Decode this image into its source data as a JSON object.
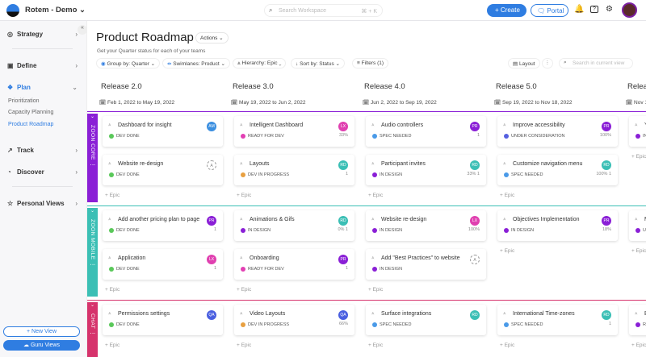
{
  "topbar": {
    "workspace": "Rotem - Demo",
    "search_placeholder": "Search Workspace",
    "search_shortcut": "⌘ + K",
    "create": "Create",
    "portal": "Portal"
  },
  "sidebar": {
    "items": [
      {
        "label": "Strategy",
        "icon": "target-icon"
      },
      {
        "label": "Define",
        "icon": "document-icon"
      },
      {
        "label": "Plan",
        "icon": "plan-icon"
      },
      {
        "label": "Track",
        "icon": "chart-icon"
      },
      {
        "label": "Discover",
        "icon": "compass-icon"
      },
      {
        "label": "Personal Views",
        "icon": "star-icon"
      }
    ],
    "plan_sub": [
      "Prioritization",
      "Capacity Planning",
      "Product Roadmap"
    ],
    "new_view": "New View",
    "guru_views": "Guru Views"
  },
  "page": {
    "title": "Product Roadmap",
    "actions": "Actions",
    "subtitle": "Get your Quarter status for each of your teams"
  },
  "toolbar": {
    "group_by": "Group by: Quarter",
    "swimlanes": "Swimlanes: Product",
    "hierarchy": "Hierarchy: Epic",
    "sort_by": "Sort by: Status",
    "filters": "Filters (1)",
    "layout": "Layout",
    "search_placeholder": "Search in current view"
  },
  "columns": [
    {
      "title": "Release 2.0",
      "dates": "Feb 1, 2022 to May 19, 2022"
    },
    {
      "title": "Release 3.0",
      "dates": "May 19, 2022 to Jun 2, 2022"
    },
    {
      "title": "Release 4.0",
      "dates": "Jun 2, 2022 to Sep 19, 2022"
    },
    {
      "title": "Release 5.0",
      "dates": "Sep 19, 2022 to Nov 18, 2022"
    },
    {
      "title": "Releas",
      "dates": "Nov 1"
    }
  ],
  "add_epic": "Epic",
  "status_colors": {
    "DEV DONE": "#5ac85a",
    "READY FOR DEV": "#e23fb3",
    "DEV IN PROGRESS": "#e8a040",
    "SPEC NEEDED": "#4a9ae8",
    "IN DESIGN": "#8a1fd6",
    "UNDER CONSIDERATION": "#5560e0"
  },
  "avatar_colors": {
    "AM": "#3b8fe0",
    "LX": "#e040b0",
    "RD": "#3bbfb5",
    "PR": "#8a1fd6",
    "QA": "#4a5fe0",
    "A": ""
  },
  "lanes": [
    {
      "name": "ZOON CORE",
      "color": "#8a1fd6",
      "columns": [
        [
          {
            "name": "Dashboard for insight",
            "status": "DEV DONE",
            "avatar": "AM",
            "meta": ""
          },
          {
            "name": "Website re-design",
            "status": "DEV DONE",
            "avatar": "A",
            "meta": ""
          }
        ],
        [
          {
            "name": "Intelligent Dashboard",
            "status": "READY FOR DEV",
            "avatar": "LX",
            "meta": "33%"
          },
          {
            "name": "Layouts",
            "status": "DEV IN PROGRESS",
            "avatar": "RD",
            "meta": "1"
          }
        ],
        [
          {
            "name": "Audio controllers",
            "status": "SPEC NEEDED",
            "avatar": "PR",
            "meta": "1"
          },
          {
            "name": "Participant invites",
            "status": "IN DESIGN",
            "avatar": "RD",
            "meta": "33%  1"
          }
        ],
        [
          {
            "name": "Improve accessibility",
            "status": "UNDER CONSIDERATION",
            "avatar": "PR",
            "meta": "100%"
          },
          {
            "name": "Customize navigation menu",
            "status": "SPEC NEEDED",
            "avatar": "RD",
            "meta": "100%  1"
          }
        ],
        [
          {
            "name": "Y",
            "status": "IN",
            "avatar": "",
            "meta": ""
          }
        ]
      ]
    },
    {
      "name": "ZOON MOBILE",
      "color": "#3bbfb5",
      "columns": [
        [
          {
            "name": "Add another pricing plan to page",
            "status": "DEV DONE",
            "avatar": "PR",
            "meta": "1"
          },
          {
            "name": "Application",
            "status": "DEV DONE",
            "avatar": "LX",
            "meta": "1"
          }
        ],
        [
          {
            "name": "Animations & Gifs",
            "status": "IN DESIGN",
            "avatar": "RD",
            "meta": "0%  1"
          },
          {
            "name": "Onboarding",
            "status": "READY FOR DEV",
            "avatar": "PR",
            "meta": "1"
          }
        ],
        [
          {
            "name": "Website re-design",
            "status": "IN DESIGN",
            "avatar": "LX",
            "meta": "100%"
          },
          {
            "name": "Add \"Best Practices\" to website",
            "status": "IN DESIGN",
            "avatar": "A",
            "meta": ""
          }
        ],
        [
          {
            "name": "Objectives Implementation",
            "status": "IN DESIGN",
            "avatar": "PR",
            "meta": "18%"
          }
        ],
        [
          {
            "name": "M",
            "status": "UN",
            "avatar": "",
            "meta": ""
          }
        ]
      ]
    },
    {
      "name": "CHAT",
      "color": "#d6336c",
      "columns": [
        [
          {
            "name": "Permissions settings",
            "status": "DEV DONE",
            "avatar": "QA",
            "meta": ""
          }
        ],
        [
          {
            "name": "Video Layouts",
            "status": "DEV IN PROGRESS",
            "avatar": "QA",
            "meta": "66%"
          }
        ],
        [
          {
            "name": "Surface integrations",
            "status": "SPEC NEEDED",
            "avatar": "RD",
            "meta": ""
          }
        ],
        [
          {
            "name": "International Time-zones",
            "status": "SPEC NEEDED",
            "avatar": "RD",
            "meta": "1"
          }
        ],
        [
          {
            "name": "B",
            "status": "RE",
            "avatar": "",
            "meta": ""
          }
        ]
      ]
    }
  ]
}
